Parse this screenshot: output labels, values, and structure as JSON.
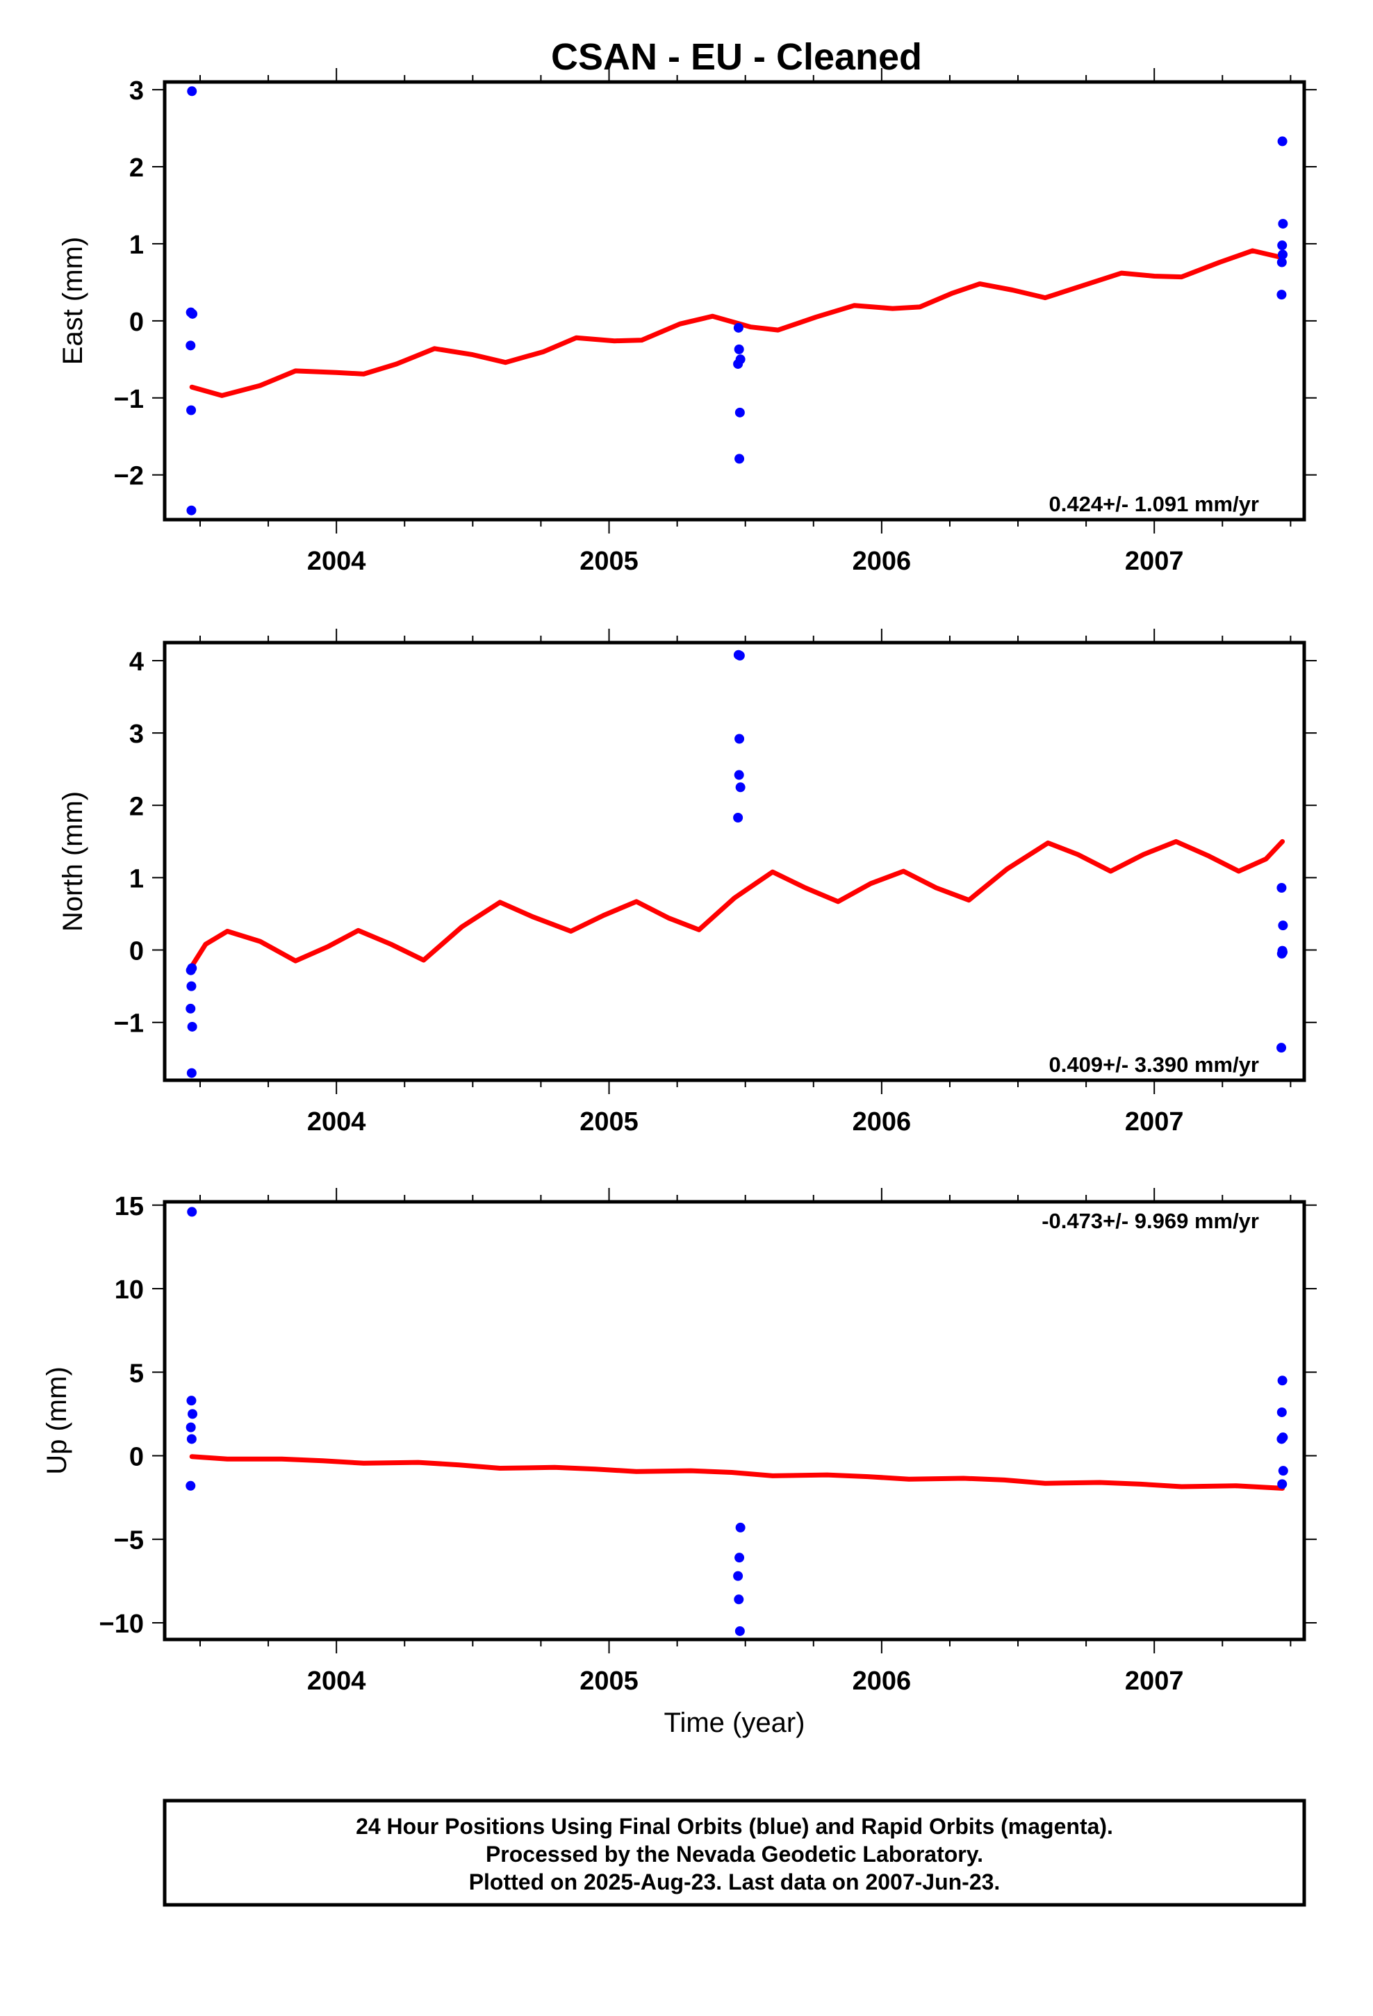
{
  "title": "CSAN  - EU - Cleaned",
  "colors": {
    "final_orbits": "#0000ff",
    "model": "#ff0000",
    "frame": "#000000"
  },
  "chart_data": [
    {
      "type": "scatter",
      "ylabel": "East (mm)",
      "xlabel": "",
      "xlim": [
        2003.37,
        2007.55
      ],
      "ylim": [
        -2.58,
        3.1
      ],
      "yticks": [
        -2,
        -1,
        0,
        1,
        2,
        3
      ],
      "ytick_labels": [
        "−2",
        "−1",
        "0",
        "1",
        "2",
        "3"
      ],
      "xticks": [
        2004,
        2005,
        2006,
        2007
      ],
      "xtick_labels": [
        "2004",
        "2005",
        "2006",
        "2007"
      ],
      "rate_label": "0.424+/- 1.091 mm/yr",
      "rate_position": "bottom-right",
      "points": [
        {
          "x": 2003.47,
          "y": 2.98
        },
        {
          "x": 2003.466,
          "y": 0.11
        },
        {
          "x": 2003.472,
          "y": 0.09
        },
        {
          "x": 2003.465,
          "y": -0.32
        },
        {
          "x": 2003.467,
          "y": -1.16
        },
        {
          "x": 2003.468,
          "y": -2.46
        },
        {
          "x": 2005.475,
          "y": -0.09
        },
        {
          "x": 2005.477,
          "y": -0.37
        },
        {
          "x": 2005.482,
          "y": -0.5
        },
        {
          "x": 2005.473,
          "y": -0.56
        },
        {
          "x": 2005.48,
          "y": -1.19
        },
        {
          "x": 2005.478,
          "y": -1.79
        },
        {
          "x": 2007.47,
          "y": 2.33
        },
        {
          "x": 2007.472,
          "y": 1.26
        },
        {
          "x": 2007.469,
          "y": 0.98
        },
        {
          "x": 2007.471,
          "y": 0.86
        },
        {
          "x": 2007.468,
          "y": 0.76
        },
        {
          "x": 2007.467,
          "y": 0.34
        }
      ],
      "model_curve": [
        {
          "x": 2003.47,
          "y": -0.86
        },
        {
          "x": 2003.58,
          "y": -0.97
        },
        {
          "x": 2003.72,
          "y": -0.84
        },
        {
          "x": 2003.85,
          "y": -0.65
        },
        {
          "x": 2004.0,
          "y": -0.67
        },
        {
          "x": 2004.1,
          "y": -0.69
        },
        {
          "x": 2004.22,
          "y": -0.56
        },
        {
          "x": 2004.36,
          "y": -0.36
        },
        {
          "x": 2004.5,
          "y": -0.44
        },
        {
          "x": 2004.62,
          "y": -0.54
        },
        {
          "x": 2004.76,
          "y": -0.4
        },
        {
          "x": 2004.88,
          "y": -0.22
        },
        {
          "x": 2005.02,
          "y": -0.26
        },
        {
          "x": 2005.12,
          "y": -0.25
        },
        {
          "x": 2005.26,
          "y": -0.04
        },
        {
          "x": 2005.38,
          "y": 0.06
        },
        {
          "x": 2005.52,
          "y": -0.08
        },
        {
          "x": 2005.62,
          "y": -0.12
        },
        {
          "x": 2005.76,
          "y": 0.05
        },
        {
          "x": 2005.9,
          "y": 0.2
        },
        {
          "x": 2006.04,
          "y": 0.16
        },
        {
          "x": 2006.14,
          "y": 0.18
        },
        {
          "x": 2006.26,
          "y": 0.36
        },
        {
          "x": 2006.36,
          "y": 0.48
        },
        {
          "x": 2006.48,
          "y": 0.4
        },
        {
          "x": 2006.6,
          "y": 0.3
        },
        {
          "x": 2006.74,
          "y": 0.46
        },
        {
          "x": 2006.88,
          "y": 0.62
        },
        {
          "x": 2007.0,
          "y": 0.58
        },
        {
          "x": 2007.1,
          "y": 0.57
        },
        {
          "x": 2007.24,
          "y": 0.76
        },
        {
          "x": 2007.36,
          "y": 0.91
        },
        {
          "x": 2007.47,
          "y": 0.82
        }
      ]
    },
    {
      "type": "scatter",
      "ylabel": "North (mm)",
      "xlabel": "",
      "xlim": [
        2003.37,
        2007.55
      ],
      "ylim": [
        -1.8,
        4.25
      ],
      "yticks": [
        -1,
        0,
        1,
        2,
        3,
        4
      ],
      "ytick_labels": [
        "−1",
        "0",
        "1",
        "2",
        "3",
        "4"
      ],
      "xticks": [
        2004,
        2005,
        2006,
        2007
      ],
      "xtick_labels": [
        "2004",
        "2005",
        "2006",
        "2007"
      ],
      "rate_label": "0.409+/- 3.390 mm/yr",
      "rate_position": "bottom-right",
      "points": [
        {
          "x": 2003.47,
          "y": -0.25
        },
        {
          "x": 2003.466,
          "y": -0.28
        },
        {
          "x": 2003.468,
          "y": -0.5
        },
        {
          "x": 2003.465,
          "y": -0.81
        },
        {
          "x": 2003.471,
          "y": -1.06
        },
        {
          "x": 2003.469,
          "y": -1.7
        },
        {
          "x": 2005.475,
          "y": 4.08
        },
        {
          "x": 2005.48,
          "y": 4.07
        },
        {
          "x": 2005.478,
          "y": 2.92
        },
        {
          "x": 2005.477,
          "y": 2.42
        },
        {
          "x": 2005.482,
          "y": 2.25
        },
        {
          "x": 2005.473,
          "y": 1.83
        },
        {
          "x": 2007.467,
          "y": 0.86
        },
        {
          "x": 2007.472,
          "y": 0.34
        },
        {
          "x": 2007.47,
          "y": -0.01
        },
        {
          "x": 2007.468,
          "y": -0.05
        },
        {
          "x": 2007.471,
          "y": -0.03
        },
        {
          "x": 2007.466,
          "y": -1.35
        }
      ],
      "model_curve": [
        {
          "x": 2003.47,
          "y": -0.22
        },
        {
          "x": 2003.52,
          "y": 0.08
        },
        {
          "x": 2003.6,
          "y": 0.26
        },
        {
          "x": 2003.72,
          "y": 0.12
        },
        {
          "x": 2003.85,
          "y": -0.15
        },
        {
          "x": 2003.97,
          "y": 0.05
        },
        {
          "x": 2004.08,
          "y": 0.27
        },
        {
          "x": 2004.2,
          "y": 0.08
        },
        {
          "x": 2004.32,
          "y": -0.14
        },
        {
          "x": 2004.46,
          "y": 0.32
        },
        {
          "x": 2004.6,
          "y": 0.66
        },
        {
          "x": 2004.72,
          "y": 0.46
        },
        {
          "x": 2004.86,
          "y": 0.26
        },
        {
          "x": 2004.98,
          "y": 0.48
        },
        {
          "x": 2005.1,
          "y": 0.67
        },
        {
          "x": 2005.22,
          "y": 0.44
        },
        {
          "x": 2005.33,
          "y": 0.28
        },
        {
          "x": 2005.46,
          "y": 0.72
        },
        {
          "x": 2005.6,
          "y": 1.08
        },
        {
          "x": 2005.72,
          "y": 0.86
        },
        {
          "x": 2005.84,
          "y": 0.67
        },
        {
          "x": 2005.96,
          "y": 0.92
        },
        {
          "x": 2006.08,
          "y": 1.09
        },
        {
          "x": 2006.2,
          "y": 0.86
        },
        {
          "x": 2006.32,
          "y": 0.69
        },
        {
          "x": 2006.46,
          "y": 1.12
        },
        {
          "x": 2006.61,
          "y": 1.48
        },
        {
          "x": 2006.72,
          "y": 1.32
        },
        {
          "x": 2006.84,
          "y": 1.09
        },
        {
          "x": 2006.96,
          "y": 1.32
        },
        {
          "x": 2007.08,
          "y": 1.5
        },
        {
          "x": 2007.2,
          "y": 1.3
        },
        {
          "x": 2007.31,
          "y": 1.09
        },
        {
          "x": 2007.41,
          "y": 1.26
        },
        {
          "x": 2007.47,
          "y": 1.5
        }
      ]
    },
    {
      "type": "scatter",
      "ylabel": "Up (mm)",
      "xlabel": "Time (year)",
      "xlim": [
        2003.37,
        2007.55
      ],
      "ylim": [
        -11.0,
        15.2
      ],
      "yticks": [
        -10,
        -5,
        0,
        5,
        10,
        15
      ],
      "ytick_labels": [
        "−10",
        "−5",
        "0",
        "5",
        "10",
        "15"
      ],
      "xticks": [
        2004,
        2005,
        2006,
        2007
      ],
      "xtick_labels": [
        "2004",
        "2005",
        "2006",
        "2007"
      ],
      "rate_label": "-0.473+/- 9.969 mm/yr",
      "rate_position": "top-right",
      "points": [
        {
          "x": 2003.47,
          "y": 14.6
        },
        {
          "x": 2003.468,
          "y": 3.3
        },
        {
          "x": 2003.472,
          "y": 2.5
        },
        {
          "x": 2003.466,
          "y": 1.7
        },
        {
          "x": 2003.469,
          "y": 1.0
        },
        {
          "x": 2003.465,
          "y": -1.8
        },
        {
          "x": 2005.482,
          "y": -4.3
        },
        {
          "x": 2005.478,
          "y": -6.1
        },
        {
          "x": 2005.473,
          "y": -7.2
        },
        {
          "x": 2005.476,
          "y": -8.6
        },
        {
          "x": 2005.48,
          "y": -10.5
        },
        {
          "x": 2007.47,
          "y": 4.5
        },
        {
          "x": 2007.468,
          "y": 2.6
        },
        {
          "x": 2007.472,
          "y": 1.1
        },
        {
          "x": 2007.467,
          "y": 1.0
        },
        {
          "x": 2007.473,
          "y": -0.9
        },
        {
          "x": 2007.469,
          "y": -1.7
        }
      ],
      "model_curve": [
        {
          "x": 2003.47,
          "y": -0.05
        },
        {
          "x": 2003.6,
          "y": -0.2
        },
        {
          "x": 2003.8,
          "y": -0.2
        },
        {
          "x": 2003.95,
          "y": -0.3
        },
        {
          "x": 2004.1,
          "y": -0.45
        },
        {
          "x": 2004.3,
          "y": -0.4
        },
        {
          "x": 2004.45,
          "y": -0.55
        },
        {
          "x": 2004.6,
          "y": -0.75
        },
        {
          "x": 2004.8,
          "y": -0.7
        },
        {
          "x": 2004.95,
          "y": -0.8
        },
        {
          "x": 2005.1,
          "y": -0.95
        },
        {
          "x": 2005.3,
          "y": -0.9
        },
        {
          "x": 2005.45,
          "y": -1.0
        },
        {
          "x": 2005.6,
          "y": -1.2
        },
        {
          "x": 2005.8,
          "y": -1.15
        },
        {
          "x": 2005.95,
          "y": -1.25
        },
        {
          "x": 2006.1,
          "y": -1.4
        },
        {
          "x": 2006.3,
          "y": -1.35
        },
        {
          "x": 2006.45,
          "y": -1.45
        },
        {
          "x": 2006.6,
          "y": -1.65
        },
        {
          "x": 2006.8,
          "y": -1.6
        },
        {
          "x": 2006.95,
          "y": -1.7
        },
        {
          "x": 2007.1,
          "y": -1.85
        },
        {
          "x": 2007.3,
          "y": -1.8
        },
        {
          "x": 2007.47,
          "y": -1.95
        }
      ]
    }
  ],
  "footer": {
    "line1": "24 Hour Positions Using Final Orbits (blue) and Rapid Orbits (magenta).",
    "line2": "Processed by the Nevada Geodetic Laboratory.",
    "line3": "Plotted on 2025-Aug-23. Last data on 2007-Jun-23."
  }
}
